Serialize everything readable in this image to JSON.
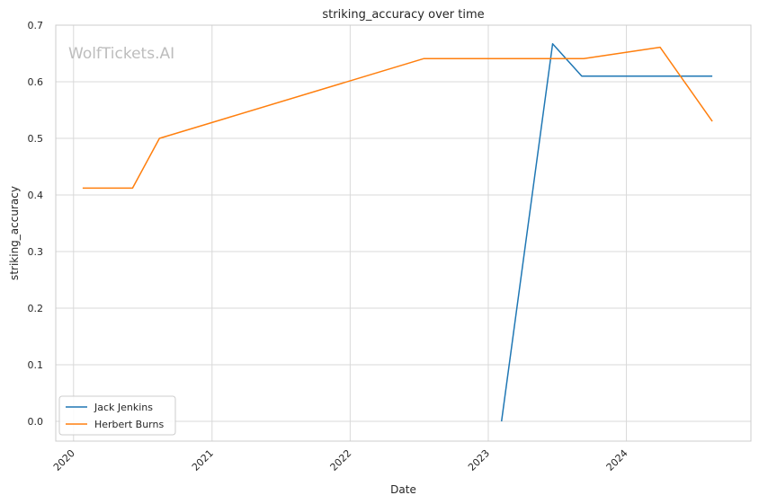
{
  "watermark": "WolfTickets.AI",
  "chart_data": {
    "type": "line",
    "title": "striking_accuracy over time",
    "xlabel": "Date",
    "ylabel": "striking_accuracy",
    "xlim": [
      "2019-11-15",
      "2024-11-25"
    ],
    "ylim": [
      -0.035,
      0.7
    ],
    "x_ticks": [
      "2020",
      "2021",
      "2022",
      "2023",
      "2024"
    ],
    "y_ticks": [
      "0.0",
      "0.1",
      "0.2",
      "0.3",
      "0.4",
      "0.5",
      "0.6",
      "0.7"
    ],
    "grid": true,
    "legend": "lower-left",
    "series": [
      {
        "name": "Jack Jenkins",
        "color": "#1f77b4",
        "points": [
          {
            "x": "2023-02-05",
            "y": 0.0
          },
          {
            "x": "2023-06-20",
            "y": 0.667
          },
          {
            "x": "2023-09-05",
            "y": 0.61
          },
          {
            "x": "2024-04-01",
            "y": 0.61
          },
          {
            "x": "2024-08-15",
            "y": 0.61
          }
        ]
      },
      {
        "name": "Herbert Burns",
        "color": "#ff7f0e",
        "points": [
          {
            "x": "2020-01-25",
            "y": 0.412
          },
          {
            "x": "2020-06-05",
            "y": 0.412
          },
          {
            "x": "2020-08-15",
            "y": 0.5
          },
          {
            "x": "2022-07-15",
            "y": 0.641
          },
          {
            "x": "2023-09-10",
            "y": 0.641
          },
          {
            "x": "2024-03-30",
            "y": 0.661
          },
          {
            "x": "2024-08-15",
            "y": 0.53
          }
        ]
      }
    ]
  }
}
